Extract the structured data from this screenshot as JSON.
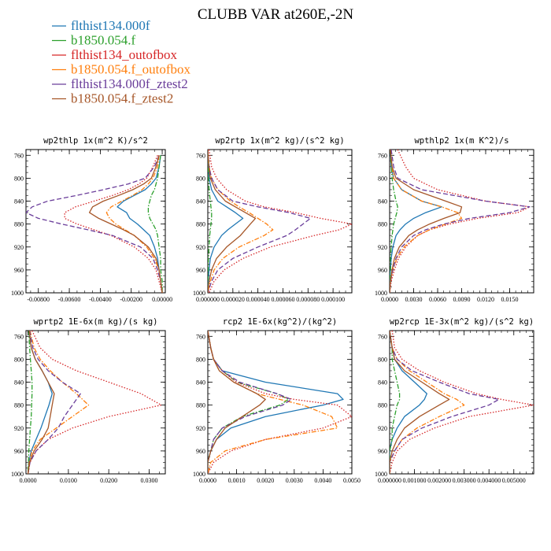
{
  "figure": {
    "title": "CLUBB VAR at260E,-2N"
  },
  "legend": {
    "entries": [
      {
        "label": "flthist134.000f",
        "color": "#1f77b4",
        "dash": "solid"
      },
      {
        "label": "b1850.054.f",
        "color": "#2ca02c",
        "dash": "dashdot"
      },
      {
        "label": "flthist134_outofbox",
        "color": "#d62728",
        "dash": "dotted"
      },
      {
        "label": "b1850.054.f_outofbox",
        "color": "#ff7f0e",
        "dash": "dashdot"
      },
      {
        "label": "flthist134.000f_ztest2",
        "color": "#6a3d9a",
        "dash": "dashed"
      },
      {
        "label": "b1850.054.f_ztest2",
        "color": "#a65628",
        "dash": "solid"
      }
    ]
  },
  "chart_data": [
    {
      "type": "line",
      "title": "wp2thlp  1x(m^2 K)/s^2",
      "xlim": [
        -0.0088,
        0.0002
      ],
      "ylim": [
        1000,
        750
      ],
      "xticks": [
        -0.008,
        -0.006,
        -0.004,
        -0.002,
        0.0
      ],
      "xtick_labels": [
        "-0.00800",
        "-0.00600",
        "-0.00400",
        "-0.00200",
        "0.00000"
      ],
      "yticks": [
        760,
        800,
        840,
        880,
        920,
        960,
        1000
      ],
      "y": [
        760,
        780,
        800,
        810,
        820,
        830,
        840,
        850,
        860,
        870,
        880,
        890,
        900,
        920,
        940,
        960,
        980,
        1000
      ],
      "series": [
        {
          "name": "flthist134.000f",
          "values": [
            -0.0001,
            -0.0002,
            -0.0004,
            -0.0007,
            -0.0011,
            -0.0018,
            -0.0025,
            -0.0029,
            -0.0023,
            -0.0021,
            -0.0016,
            -0.0012,
            -0.0008,
            -0.0005,
            -0.0003,
            -0.0002,
            -0.0001,
            0.0
          ]
        },
        {
          "name": "b1850.054.f",
          "values": [
            -0.0001,
            -0.0002,
            -0.0003,
            -0.0004,
            -0.0005,
            -0.0007,
            -0.0008,
            -0.0009,
            -0.0009,
            -0.0008,
            -0.0006,
            -0.0004,
            -0.0003,
            -0.0002,
            -0.0001,
            -0.0001,
            0.0,
            0.0
          ]
        },
        {
          "name": "flthist134_outofbox",
          "values": [
            -0.0003,
            -0.0006,
            -0.001,
            -0.0015,
            -0.0022,
            -0.0032,
            -0.0044,
            -0.0056,
            -0.0063,
            -0.0063,
            -0.0055,
            -0.0044,
            -0.0033,
            -0.0018,
            -0.0009,
            -0.0004,
            -0.0002,
            0.0
          ]
        },
        {
          "name": "b1850.054.f_outofbox",
          "values": [
            -0.0002,
            -0.0003,
            -0.0006,
            -0.0009,
            -0.0013,
            -0.0019,
            -0.0026,
            -0.0033,
            -0.0036,
            -0.0034,
            -0.003,
            -0.0024,
            -0.0018,
            -0.001,
            -0.0005,
            -0.0002,
            -0.0001,
            0.0
          ]
        },
        {
          "name": "flthist134.000f_ztest2",
          "values": [
            -0.0002,
            -0.0005,
            -0.0011,
            -0.0022,
            -0.0038,
            -0.0055,
            -0.0074,
            -0.0084,
            -0.0088,
            -0.008,
            -0.0065,
            -0.0048,
            -0.0032,
            -0.0014,
            -0.0006,
            -0.0003,
            -0.0001,
            0.0
          ]
        },
        {
          "name": "b1850.054.f_ztest2",
          "values": [
            -0.0002,
            -0.0004,
            -0.0007,
            -0.0012,
            -0.0019,
            -0.0028,
            -0.0038,
            -0.0045,
            -0.0047,
            -0.0041,
            -0.0033,
            -0.0025,
            -0.0018,
            -0.0009,
            -0.0004,
            -0.0002,
            -0.0001,
            0.0
          ]
        }
      ]
    },
    {
      "type": "line",
      "title": "wp2rtp  1x(m^2 kg)/(s^2 kg)",
      "xlim": [
        0.0,
        0.000115
      ],
      "ylim": [
        1000,
        750
      ],
      "xticks": [
        0.0,
        2e-05,
        4e-05,
        6e-05,
        8e-05,
        0.0001
      ],
      "xtick_labels": [
        "0.000000",
        "0.000020",
        "0.000040",
        "0.000060",
        "0.000080",
        "0.000100"
      ],
      "yticks": [
        760,
        800,
        840,
        880,
        920,
        960,
        1000
      ],
      "y": [
        750,
        780,
        800,
        820,
        840,
        850,
        860,
        870,
        880,
        890,
        900,
        920,
        940,
        960,
        980,
        1000
      ],
      "series": [
        {
          "name": "flthist134.000f",
          "values": [
            0.0,
            5e-07,
            1e-06,
            3e-06,
            8e-06,
            1.5e-05,
            2.2e-05,
            2.8e-05,
            2.2e-05,
            1.6e-05,
            1.1e-05,
            5e-06,
            2e-06,
            1e-06,
            3e-07,
            0.0
          ]
        },
        {
          "name": "b1850.054.f",
          "values": [
            0.0,
            3e-07,
            5e-07,
            1e-06,
            2e-06,
            2.5e-06,
            3e-06,
            3e-06,
            2.5e-06,
            2e-06,
            1.5e-06,
            1e-06,
            5e-07,
            3e-07,
            1e-07,
            0.0
          ]
        },
        {
          "name": "flthist134_outofbox",
          "values": [
            1e-06,
            3e-06,
            7e-06,
            1.5e-05,
            3e-05,
            4.5e-05,
            7e-05,
            9e-05,
            0.000115,
            0.000105,
            8.5e-05,
            5e-05,
            2.8e-05,
            1.3e-05,
            5e-06,
            1e-06
          ]
        },
        {
          "name": "b1850.054.f_outofbox",
          "values": [
            0.0,
            1e-06,
            3e-06,
            8e-06,
            1.8e-05,
            2.5e-05,
            3.3e-05,
            4e-05,
            4.7e-05,
            5.2e-05,
            4.5e-05,
            2.5e-05,
            1.2e-05,
            5e-06,
            2e-06,
            0.0
          ]
        },
        {
          "name": "flthist134.000f_ztest2",
          "values": [
            0.0,
            1e-06,
            3e-06,
            8e-06,
            2e-05,
            4e-05,
            6.5e-05,
            8.2e-05,
            7.6e-05,
            7e-05,
            6.3e-05,
            4e-05,
            2e-05,
            8e-06,
            3e-06,
            0.0
          ]
        },
        {
          "name": "b1850.054.f_ztest2",
          "values": [
            0.0,
            8e-07,
            2e-06,
            6e-06,
            1.4e-05,
            2.2e-05,
            3e-05,
            3.8e-05,
            3.4e-05,
            3e-05,
            2.6e-05,
            1.5e-05,
            7e-06,
            3e-06,
            1e-06,
            0.0
          ]
        }
      ]
    },
    {
      "type": "line",
      "title": "wpthlp2  1x(m K^2)/s",
      "xlim": [
        0.0,
        0.018
      ],
      "ylim": [
        1000,
        750
      ],
      "xticks": [
        0.0,
        0.003,
        0.006,
        0.009,
        0.012,
        0.015
      ],
      "xtick_labels": [
        "0.0000",
        "0.0030",
        "0.0060",
        "0.0090",
        "0.0120",
        "0.0150"
      ],
      "yticks": [
        760,
        800,
        840,
        880,
        920,
        960,
        1000
      ],
      "y": [
        750,
        780,
        800,
        820,
        840,
        850,
        860,
        870,
        880,
        890,
        900,
        920,
        940,
        960,
        980,
        1000
      ],
      "series": [
        {
          "name": "flthist134.000f",
          "values": [
            0.0001,
            0.0002,
            0.0005,
            0.0015,
            0.004,
            0.0065,
            0.0045,
            0.003,
            0.002,
            0.0013,
            0.0008,
            0.0004,
            0.0002,
            0.0001,
            0.0,
            0.0
          ]
        },
        {
          "name": "b1850.054.f",
          "values": [
            0.0001,
            0.0002,
            0.0003,
            0.0005,
            0.0008,
            0.001,
            0.0009,
            0.0007,
            0.0005,
            0.0004,
            0.0003,
            0.0002,
            0.0001,
            0.0001,
            0.0,
            0.0
          ]
        },
        {
          "name": "flthist134_outofbox",
          "values": [
            0.001,
            0.002,
            0.003,
            0.006,
            0.012,
            0.0175,
            0.016,
            0.011,
            0.0075,
            0.005,
            0.0035,
            0.002,
            0.0011,
            0.0006,
            0.0002,
            0.0
          ]
        },
        {
          "name": "b1850.054.f_outofbox",
          "values": [
            0.0001,
            0.0003,
            0.0005,
            0.0015,
            0.004,
            0.0065,
            0.0085,
            0.009,
            0.007,
            0.005,
            0.0035,
            0.0018,
            0.0009,
            0.0004,
            0.0001,
            0.0
          ]
        },
        {
          "name": "flthist134.000f_ztest2",
          "values": [
            0.0002,
            0.0005,
            0.001,
            0.004,
            0.012,
            0.0175,
            0.015,
            0.01,
            0.0068,
            0.0045,
            0.003,
            0.0015,
            0.0008,
            0.0004,
            0.0001,
            0.0
          ]
        },
        {
          "name": "b1850.054.f_ztest2",
          "values": [
            0.0001,
            0.0003,
            0.0008,
            0.003,
            0.007,
            0.009,
            0.0088,
            0.0068,
            0.005,
            0.0035,
            0.0024,
            0.0012,
            0.0006,
            0.0003,
            0.0001,
            0.0
          ]
        }
      ]
    },
    {
      "type": "line",
      "title": "wprtp2  1E-6x(m kg)/(s kg)",
      "xlim": [
        -0.0005,
        0.034
      ],
      "ylim": [
        1000,
        750
      ],
      "xticks": [
        0.0,
        0.01,
        0.02,
        0.03
      ],
      "xtick_labels": [
        "0.0000",
        "0.0100",
        "0.0200",
        "0.0300"
      ],
      "yticks": [
        760,
        800,
        840,
        880,
        920,
        960,
        1000
      ],
      "y": [
        750,
        780,
        800,
        820,
        840,
        860,
        880,
        900,
        920,
        940,
        960,
        980,
        1000
      ],
      "series": [
        {
          "name": "flthist134.000f",
          "values": [
            0.0002,
            0.0008,
            0.0018,
            0.0035,
            0.005,
            0.006,
            0.0052,
            0.0042,
            0.0032,
            0.002,
            0.0008,
            0.0002,
            0.0
          ]
        },
        {
          "name": "b1850.054.f",
          "values": [
            0.0002,
            0.0004,
            0.0006,
            0.0008,
            0.001,
            0.001,
            0.0009,
            0.0008,
            0.0006,
            0.0004,
            0.0002,
            0.0001,
            0.0
          ]
        },
        {
          "name": "flthist134_outofbox",
          "values": [
            0.001,
            0.003,
            0.006,
            0.012,
            0.02,
            0.028,
            0.033,
            0.02,
            0.011,
            0.005,
            0.002,
            0.0005,
            0.0
          ]
        },
        {
          "name": "b1850.054.f_outofbox",
          "values": [
            0.0005,
            0.0015,
            0.003,
            0.0055,
            0.0085,
            0.012,
            0.015,
            0.011,
            0.007,
            0.003,
            0.001,
            0.0003,
            0.0
          ]
        },
        {
          "name": "flthist134.000f_ztest2",
          "values": [
            0.0004,
            0.0012,
            0.0025,
            0.005,
            0.0085,
            0.013,
            0.011,
            0.009,
            0.0075,
            0.005,
            0.002,
            0.0005,
            0.0
          ]
        },
        {
          "name": "b1850.054.f_ztest2",
          "values": [
            0.0003,
            0.0008,
            0.0018,
            0.0035,
            0.005,
            0.0065,
            0.006,
            0.0055,
            0.005,
            0.0035,
            0.0015,
            0.0004,
            0.0
          ]
        }
      ]
    },
    {
      "type": "line",
      "title": "rcp2  1E-6x(kg^2)/(kg^2)",
      "xlim": [
        0.0,
        0.005
      ],
      "ylim": [
        1000,
        750
      ],
      "xticks": [
        0.0,
        0.001,
        0.002,
        0.003,
        0.004,
        0.005
      ],
      "xtick_labels": [
        "0.0000",
        "0.0010",
        "0.0020",
        "0.0030",
        "0.0040",
        "0.0050"
      ],
      "yticks": [
        760,
        800,
        840,
        880,
        920,
        960,
        1000
      ],
      "y": [
        750,
        780,
        800,
        820,
        840,
        860,
        870,
        880,
        900,
        920,
        940,
        960,
        980,
        1000
      ],
      "series": [
        {
          "name": "flthist134.000f",
          "values": [
            0.0,
            0.0001,
            0.0002,
            0.0005,
            0.002,
            0.0045,
            0.0047,
            0.004,
            0.002,
            0.0008,
            0.0003,
            0.0001,
            0.0,
            0.0
          ]
        },
        {
          "name": "b1850.054.f",
          "values": [
            0.0,
            0.0001,
            0.0002,
            0.0005,
            0.001,
            0.0024,
            0.0028,
            0.0025,
            0.0012,
            0.0005,
            0.0002,
            0.0001,
            0.0,
            0.0
          ]
        },
        {
          "name": "flthist134_outofbox",
          "values": [
            0.0,
            0.0001,
            0.0002,
            0.0005,
            0.001,
            0.002,
            0.003,
            0.0045,
            0.005,
            0.004,
            0.002,
            0.0008,
            0.0002,
            0.0
          ]
        },
        {
          "name": "b1850.054.f_outofbox",
          "values": [
            0.0,
            0.0001,
            0.0002,
            0.0004,
            0.0009,
            0.0017,
            0.0025,
            0.0033,
            0.0043,
            0.0045,
            0.002,
            0.0006,
            0.0001,
            0.0
          ]
        },
        {
          "name": "flthist134.000f_ztest2",
          "values": [
            0.0,
            0.0001,
            0.0002,
            0.0005,
            0.0011,
            0.0024,
            0.0029,
            0.0026,
            0.0013,
            0.0005,
            0.0002,
            0.0001,
            0.0,
            0.0
          ]
        },
        {
          "name": "b1850.054.f_ztest2",
          "values": [
            0.0,
            0.0001,
            0.0002,
            0.0004,
            0.0009,
            0.0017,
            0.002,
            0.0018,
            0.0012,
            0.0006,
            0.0003,
            0.0001,
            0.0,
            0.0
          ]
        }
      ]
    },
    {
      "type": "line",
      "title": "wp2rcp  1E-3x(m^2 kg)/(s^2 kg)",
      "xlim": [
        0.0,
        0.0058
      ],
      "ylim": [
        1000,
        750
      ],
      "xticks": [
        0.0,
        0.001,
        0.002,
        0.003,
        0.004,
        0.005
      ],
      "xtick_labels": [
        "0.000000",
        "0.001000",
        "0.002000",
        "0.003000",
        "0.004000",
        "0.005000"
      ],
      "yticks": [
        760,
        800,
        840,
        880,
        920,
        960,
        1000
      ],
      "y": [
        750,
        780,
        800,
        820,
        840,
        860,
        870,
        880,
        900,
        920,
        940,
        960,
        980,
        1000
      ],
      "series": [
        {
          "name": "flthist134.000f",
          "values": [
            0.0,
            0.0001,
            0.0002,
            0.0005,
            0.001,
            0.0015,
            0.0014,
            0.0012,
            0.0006,
            0.0003,
            0.0001,
            0.0,
            0.0,
            0.0
          ]
        },
        {
          "name": "b1850.054.f",
          "values": [
            0.0,
            0.0001,
            0.0001,
            0.0002,
            0.0003,
            0.0004,
            0.0004,
            0.0003,
            0.0002,
            0.0001,
            0.0001,
            0.0,
            0.0,
            0.0
          ]
        },
        {
          "name": "flthist134_outofbox",
          "values": [
            0.0001,
            0.0002,
            0.0005,
            0.0012,
            0.0022,
            0.0035,
            0.0045,
            0.0058,
            0.0032,
            0.0018,
            0.0008,
            0.0003,
            0.0001,
            0.0
          ]
        },
        {
          "name": "b1850.054.f_outofbox",
          "values": [
            0.0,
            0.0001,
            0.0003,
            0.0008,
            0.0015,
            0.0022,
            0.0027,
            0.003,
            0.002,
            0.0011,
            0.0005,
            0.0002,
            0.0,
            0.0
          ]
        },
        {
          "name": "flthist134.000f_ztest2",
          "values": [
            0.0,
            0.0001,
            0.0003,
            0.0009,
            0.002,
            0.0032,
            0.0044,
            0.004,
            0.0025,
            0.0013,
            0.0005,
            0.0002,
            0.0,
            0.0
          ]
        },
        {
          "name": "b1850.054.f_ztest2",
          "values": [
            0.0,
            0.0001,
            0.0002,
            0.0006,
            0.0013,
            0.002,
            0.0024,
            0.002,
            0.0012,
            0.0006,
            0.0003,
            0.0001,
            0.0,
            0.0
          ]
        }
      ]
    }
  ]
}
